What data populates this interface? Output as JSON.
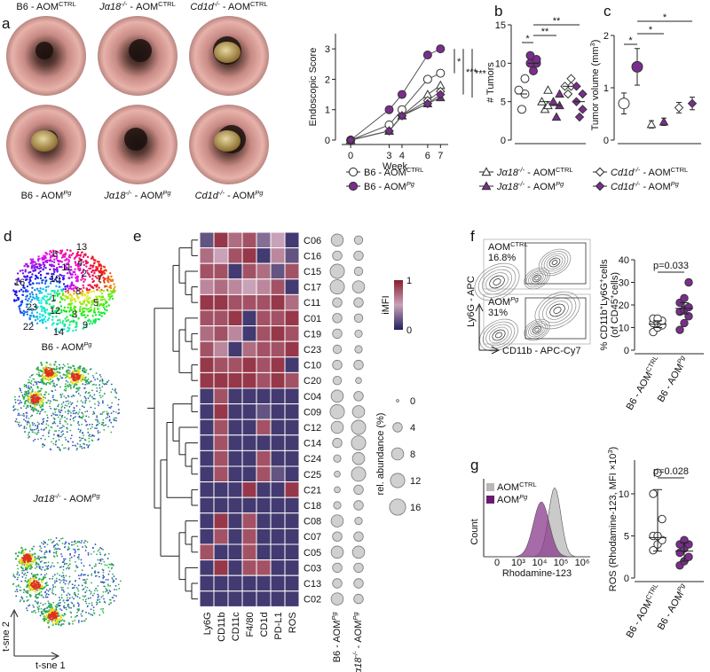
{
  "groups": [
    {
      "name": [
        {
          "t": "B6 - AOM"
        },
        {
          "t": "CTRL",
          "f": "s"
        }
      ],
      "marker": "circle",
      "color": "#ffffff"
    },
    {
      "name": [
        {
          "t": "B6 - AOM"
        },
        {
          "t": "Pg",
          "f": "is"
        }
      ],
      "marker": "circle",
      "color": "#7b2d8e"
    },
    {
      "name": [
        {
          "t": "Jα18",
          "f": "i"
        },
        {
          "t": "-/-",
          "f": "is"
        },
        {
          "t": " - AOM"
        },
        {
          "t": "CTRL",
          "f": "s"
        }
      ],
      "marker": "triangle",
      "color": "#ffffff"
    },
    {
      "name": [
        {
          "t": "Jα18",
          "f": "i"
        },
        {
          "t": "-/-",
          "f": "is"
        },
        {
          "t": " - AOM"
        },
        {
          "t": "Pg",
          "f": "is"
        }
      ],
      "marker": "triangle",
      "color": "#7b2d8e"
    },
    {
      "name": [
        {
          "t": "Cd1d",
          "f": "i"
        },
        {
          "t": "-/-",
          "f": "is"
        },
        {
          "t": " - AOM"
        },
        {
          "t": "CTRL",
          "f": "s"
        }
      ],
      "marker": "diamond",
      "color": "#ffffff"
    },
    {
      "name": [
        {
          "t": "Cd1d",
          "f": "i"
        },
        {
          "t": "-/-",
          "f": "is"
        },
        {
          "t": " - AOM"
        },
        {
          "t": "Pg",
          "f": "is"
        }
      ],
      "marker": "diamond",
      "color": "#7b2d8e"
    }
  ],
  "a": {
    "letter": "a",
    "images": [
      [
        {
          "t": "B6 - AOM"
        },
        {
          "t": "CTRL",
          "f": "s"
        }
      ],
      [
        {
          "t": "Jα18",
          "f": "i"
        },
        {
          "t": "-/-",
          "f": "is"
        },
        {
          "t": " - AOM"
        },
        {
          "t": "CTRL",
          "f": "s"
        }
      ],
      [
        {
          "t": "Cd1d",
          "f": "i"
        },
        {
          "t": "-/-",
          "f": "is"
        },
        {
          "t": " - AOM"
        },
        {
          "t": "CTRL",
          "f": "s"
        }
      ],
      [
        {
          "t": "B6 - AOM"
        },
        {
          "t": "Pg",
          "f": "is"
        }
      ],
      [
        {
          "t": "Jα18",
          "f": "i"
        },
        {
          "t": "-/-",
          "f": "is"
        },
        {
          "t": " - AOM"
        },
        {
          "t": "Pg",
          "f": "is"
        }
      ],
      [
        {
          "t": "Cd1d",
          "f": "i"
        },
        {
          "t": "-/-",
          "f": "is"
        },
        {
          "t": " - AOM"
        },
        {
          "t": "Pg",
          "f": "is"
        }
      ]
    ],
    "chart": {
      "type": "line",
      "ylabel": "Endoscopic Score",
      "xlabel": "Week",
      "x": [
        0,
        3,
        4,
        6,
        7
      ],
      "xlim": [
        -0.7,
        7.6
      ],
      "xticks": [
        0,
        3,
        4,
        6,
        7
      ],
      "ylim": [
        0,
        3.5
      ],
      "yticks": [
        0,
        1,
        2,
        3
      ],
      "series": [
        {
          "values": [
            0,
            0.5,
            1.0,
            2.0,
            2.2
          ]
        },
        {
          "values": [
            0,
            1.0,
            1.5,
            2.8,
            3.0
          ]
        },
        {
          "values": [
            0,
            0.3,
            0.8,
            1.5,
            1.8
          ]
        },
        {
          "values": [
            0,
            0.3,
            0.8,
            1.2,
            1.4
          ]
        },
        {
          "values": [
            0,
            0.3,
            0.8,
            1.3,
            1.6
          ]
        },
        {
          "values": [
            0,
            0.3,
            0.8,
            1.2,
            1.5
          ]
        }
      ],
      "significance": [
        "*",
        "***",
        "***"
      ]
    }
  },
  "b": {
    "letter": "b",
    "type": "dot",
    "ylabel": "# Tumors",
    "ylim": [
      0,
      15
    ],
    "yticks": [
      0,
      5,
      10,
      15
    ],
    "groups": [
      {
        "points": [
          4,
          6,
          6.5,
          8
        ],
        "mean": 6
      },
      {
        "points": [
          9,
          10,
          10,
          10.5,
          11
        ],
        "mean": 10
      },
      {
        "points": [
          4,
          4.5,
          5,
          6.5
        ],
        "mean": 5
      },
      {
        "points": [
          3,
          4.5,
          5,
          6
        ],
        "mean": 4.5
      },
      {
        "points": [
          6,
          7,
          7,
          8
        ],
        "mean": 7
      },
      {
        "points": [
          3,
          4,
          5,
          6,
          7
        ],
        "mean": 5
      }
    ],
    "significance": [
      "*",
      "**",
      "**"
    ]
  },
  "c": {
    "letter": "c",
    "type": "errorbar",
    "ylabel": [
      {
        "t": "Tumor volume (mm"
      },
      {
        "t": "3",
        "f": "s"
      },
      {
        "t": ")"
      }
    ],
    "ylim": [
      0,
      2
    ],
    "yticks": [
      0,
      1,
      2
    ],
    "means": [
      0.7,
      1.4,
      0.3,
      0.35,
      0.62,
      0.7
    ],
    "errors": [
      0.2,
      0.35,
      0.07,
      0.07,
      0.1,
      0.12
    ],
    "significance": [
      "*",
      "*",
      "*"
    ]
  },
  "d": {
    "letter": "d",
    "clusters": [
      "6",
      "13",
      "11",
      "10",
      "2",
      "7",
      "16",
      "1",
      "8",
      "3",
      "12",
      "5",
      "23",
      "9",
      "14",
      "22",
      "4"
    ],
    "titles": [
      [
        {
          "t": "B6 - AOM"
        },
        {
          "t": "Pg",
          "f": "is"
        }
      ],
      [
        {
          "t": "Jα18",
          "f": "i"
        },
        {
          "t": "-/-",
          "f": "is"
        },
        {
          "t": " - AOM"
        },
        {
          "t": "Pg",
          "f": "is"
        }
      ]
    ],
    "xaxis": "t-sne 1",
    "yaxis": "t-sne 2"
  },
  "e": {
    "letter": "e",
    "markers": [
      "Ly6G",
      "CD11b",
      "CD11c",
      "F4/80",
      "CD1d",
      "PD-L1",
      "ROS"
    ],
    "rows": [
      {
        "name": "C06",
        "imfi": [
          0.2,
          0.9,
          0.7,
          0.8,
          0.3,
          0.5,
          0.1
        ],
        "abundance": [
          8,
          3
        ]
      },
      {
        "name": "C16",
        "imfi": [
          0.7,
          0.5,
          0.8,
          0.9,
          0.1,
          0.6,
          0.2
        ],
        "abundance": [
          4,
          4
        ]
      },
      {
        "name": "C15",
        "imfi": [
          0.8,
          0.8,
          0.1,
          0.8,
          0.7,
          0.2,
          0.8
        ],
        "abundance": [
          12,
          3
        ]
      },
      {
        "name": "C17",
        "imfi": [
          0.6,
          0.7,
          0.6,
          0.5,
          0.6,
          0.8,
          0.1
        ],
        "abundance": [
          12,
          8
        ]
      },
      {
        "name": "C11",
        "imfi": [
          0.9,
          0.9,
          0.8,
          0.8,
          0.8,
          0.9,
          0.7
        ],
        "abundance": [
          4,
          4
        ]
      },
      {
        "name": "C01",
        "imfi": [
          0.8,
          0.8,
          0.9,
          0.1,
          0.8,
          0.8,
          0.9
        ],
        "abundance": [
          4,
          3
        ]
      },
      {
        "name": "C19",
        "imfi": [
          0.7,
          0.8,
          0.6,
          0.1,
          0.8,
          0.9,
          0.8
        ],
        "abundance": [
          4,
          2
        ]
      },
      {
        "name": "C23",
        "imfi": [
          0.8,
          0.6,
          0.1,
          0.7,
          0.8,
          0.8,
          0.9
        ],
        "abundance": [
          3,
          2
        ]
      },
      {
        "name": "C10",
        "imfi": [
          0.9,
          0.8,
          0.8,
          0.9,
          0.8,
          0.9,
          0.1
        ],
        "abundance": [
          4,
          4
        ]
      },
      {
        "name": "C20",
        "imfi": [
          0.9,
          0.9,
          0.9,
          0.9,
          0.8,
          0.9,
          0.8
        ],
        "abundance": [
          3,
          1
        ]
      },
      {
        "name": "C04",
        "imfi": [
          0.1,
          0.8,
          0.1,
          0.1,
          0.1,
          0.1,
          0.1
        ],
        "abundance": [
          8,
          4
        ]
      },
      {
        "name": "C09",
        "imfi": [
          0.1,
          0.9,
          0.1,
          0.1,
          0.2,
          0.1,
          0.1
        ],
        "abundance": [
          12,
          8
        ]
      },
      {
        "name": "C12",
        "imfi": [
          0.1,
          0.8,
          0.1,
          0.1,
          0.8,
          0.1,
          0.1
        ],
        "abundance": [
          8,
          12
        ]
      },
      {
        "name": "C14",
        "imfi": [
          0.1,
          0.8,
          0.1,
          0.1,
          0.1,
          0.1,
          0.1
        ],
        "abundance": [
          4,
          12
        ]
      },
      {
        "name": "C24",
        "imfi": [
          0.1,
          0.8,
          0.1,
          0.1,
          0.8,
          0.1,
          0.1
        ],
        "abundance": [
          2,
          8
        ]
      },
      {
        "name": "C25",
        "imfi": [
          0.1,
          0.8,
          0.1,
          0.1,
          0.8,
          0.2,
          0.1
        ],
        "abundance": [
          1,
          12
        ]
      },
      {
        "name": "C21",
        "imfi": [
          0.1,
          0.1,
          0.1,
          0.9,
          0.1,
          0.1,
          0.9
        ],
        "abundance": [
          1,
          4
        ]
      },
      {
        "name": "C18",
        "imfi": [
          0.1,
          0.1,
          0.1,
          0.1,
          0.1,
          0.1,
          0.1
        ],
        "abundance": [
          2,
          4
        ]
      },
      {
        "name": "C08",
        "imfi": [
          0.1,
          0.9,
          0.1,
          0.8,
          0.1,
          0.1,
          0.1
        ],
        "abundance": [
          8,
          2
        ]
      },
      {
        "name": "C07",
        "imfi": [
          0.1,
          0.8,
          0.1,
          0.8,
          0.1,
          0.1,
          0.1
        ],
        "abundance": [
          4,
          4
        ]
      },
      {
        "name": "C05",
        "imfi": [
          0.8,
          0.1,
          0.1,
          0.8,
          0.1,
          0.1,
          0.1
        ],
        "abundance": [
          8,
          8
        ]
      },
      {
        "name": "C03",
        "imfi": [
          0.1,
          0.9,
          0.1,
          0.8,
          0.8,
          0.1,
          0.1
        ],
        "abundance": [
          4,
          4
        ]
      },
      {
        "name": "C13",
        "imfi": [
          0.1,
          0.1,
          0.1,
          0.1,
          0.1,
          0.1,
          0.1
        ],
        "abundance": [
          4,
          4
        ]
      },
      {
        "name": "C02",
        "imfi": [
          0.1,
          0.1,
          0.1,
          0.1,
          0.1,
          0.1,
          0.1
        ],
        "abundance": [
          8,
          4
        ]
      }
    ],
    "abundance_cols": [
      [
        {
          "t": "B6 - AOM"
        },
        {
          "t": "Pg",
          "f": "is"
        }
      ],
      [
        {
          "t": "Jα18",
          "f": "i"
        },
        {
          "t": "-/-",
          "f": "is"
        },
        {
          "t": " - AOM"
        },
        {
          "t": "Pg",
          "f": "is"
        }
      ]
    ],
    "color_title": "iMFI",
    "color_ticks": [
      0,
      1
    ],
    "size_title": "rel. abundance (%)",
    "size_ticks": [
      0,
      4,
      8,
      12,
      16
    ]
  },
  "f": {
    "letter": "f",
    "gates": [
      {
        "label": [
          {
            "t": "AOM"
          },
          {
            "t": "CTRL",
            "f": "s"
          }
        ],
        "pct": "16.8%"
      },
      {
        "label": [
          {
            "t": "AOM"
          },
          {
            "t": "Pg",
            "f": "is"
          }
        ],
        "pct": "31%"
      }
    ],
    "ylabel": "Ly6G - APC",
    "xlabel": "CD11b - APC-Cy7",
    "chart": {
      "type": "dot",
      "ylabel": [
        {
          "t": "% CD11b"
        },
        {
          "t": "+",
          "f": "s"
        },
        {
          "t": "Ly6G"
        },
        {
          "t": "+",
          "f": "s"
        },
        {
          "t": "cells"
        }
      ],
      "ylabel2": [
        {
          "t": "(of CD45"
        },
        {
          "t": "+",
          "f": "s"
        },
        {
          "t": "cells)"
        }
      ],
      "ylim": [
        0,
        40
      ],
      "yticks": [
        0,
        10,
        20,
        30,
        40
      ],
      "categories": [
        [
          {
            "t": "B6 - AOM"
          },
          {
            "t": "CTRL",
            "f": "s"
          }
        ],
        [
          {
            "t": "B6 - AOM"
          },
          {
            "t": "Pg",
            "f": "is"
          }
        ]
      ],
      "groups": [
        {
          "points": [
            8,
            10,
            11,
            12,
            12,
            13,
            14,
            14
          ],
          "center": 11.5,
          "low": 10,
          "high": 13
        },
        {
          "points": [
            9,
            12,
            15,
            17,
            18,
            19,
            21,
            23,
            30
          ],
          "center": 18.5,
          "low": 16,
          "high": 21
        }
      ],
      "pvalue": "p=0.033"
    }
  },
  "g": {
    "letter": "g",
    "legend": [
      [
        {
          "t": "AOM"
        },
        {
          "t": "CTRL",
          "f": "s"
        }
      ],
      [
        {
          "t": "AOM"
        },
        {
          "t": "Pg",
          "f": "is"
        }
      ]
    ],
    "ylabel": "Count",
    "xlabel": "Rhodamine-123",
    "xticks": [
      "0",
      "10³",
      "10⁴",
      "10⁵",
      "10⁶"
    ],
    "chart": {
      "type": "dot",
      "ylabel": [
        {
          "t": "ROS (Rhodamine-123, MFI ×10"
        },
        {
          "t": "3",
          "f": "s"
        },
        {
          "t": ")"
        }
      ],
      "ylim": [
        0,
        14
      ],
      "yticks": [
        0,
        5,
        10
      ],
      "categories": [
        [
          {
            "t": "B6 - AOM"
          },
          {
            "t": "CTRL",
            "f": "s"
          }
        ],
        [
          {
            "t": "B6 - AOM"
          },
          {
            "t": "Pg",
            "f": "is"
          }
        ]
      ],
      "groups": [
        {
          "points": [
            3.3,
            4,
            4.5,
            5,
            5,
            7,
            10,
            12.5
          ],
          "center": 4.8,
          "low": 3.2,
          "high": 10.5
        },
        {
          "points": [
            1.5,
            2,
            2.5,
            3,
            3.5,
            4,
            4,
            4.5
          ],
          "center": 3.2,
          "low": 2,
          "high": 4.2
        }
      ],
      "pvalue": "p=0.028"
    }
  }
}
